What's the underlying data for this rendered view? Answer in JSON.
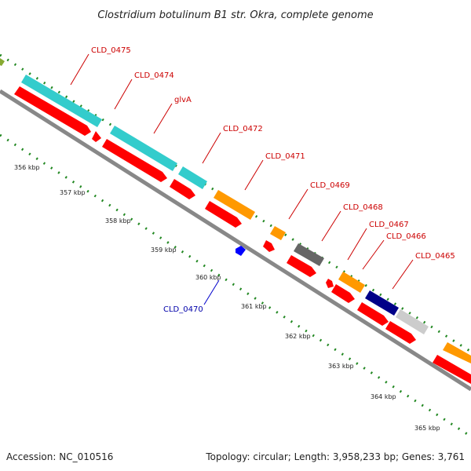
{
  "title": "Clostridium botulinum B1 str. Okra, complete genome",
  "footer": {
    "accession": "Accession: NC_010516",
    "summary": "Topology: circular; Length: 3,958,233 bp; Genes: 3,761"
  },
  "ticks": [
    "356 kbp",
    "357 kbp",
    "358 kbp",
    "359 kbp",
    "360 kbp",
    "361 kbp",
    "362 kbp",
    "363 kbp",
    "364 kbp",
    "365 kbp"
  ],
  "gene_labels": [
    {
      "text": "CLD_0475",
      "strand": "forward"
    },
    {
      "text": "CLD_0474",
      "strand": "forward"
    },
    {
      "text": "glvA",
      "strand": "forward"
    },
    {
      "text": "CLD_0472",
      "strand": "forward"
    },
    {
      "text": "CLD_0471",
      "strand": "forward"
    },
    {
      "text": "CLD_0469",
      "strand": "forward"
    },
    {
      "text": "CLD_0468",
      "strand": "forward"
    },
    {
      "text": "CLD_0467",
      "strand": "forward"
    },
    {
      "text": "CLD_0466",
      "strand": "forward"
    },
    {
      "text": "CLD_0465",
      "strand": "forward"
    },
    {
      "text": "CLD_0470",
      "strand": "reverse"
    }
  ],
  "colors": {
    "backbone": "#888888",
    "cds": "#ff0000",
    "cyan": "#33cccc",
    "orange": "#ff9900",
    "gray": "#666666",
    "navy": "#000088",
    "lightgray": "#cccccc",
    "olive": "#88aa33",
    "blue": "#0000ff",
    "dots": "#228822"
  }
}
